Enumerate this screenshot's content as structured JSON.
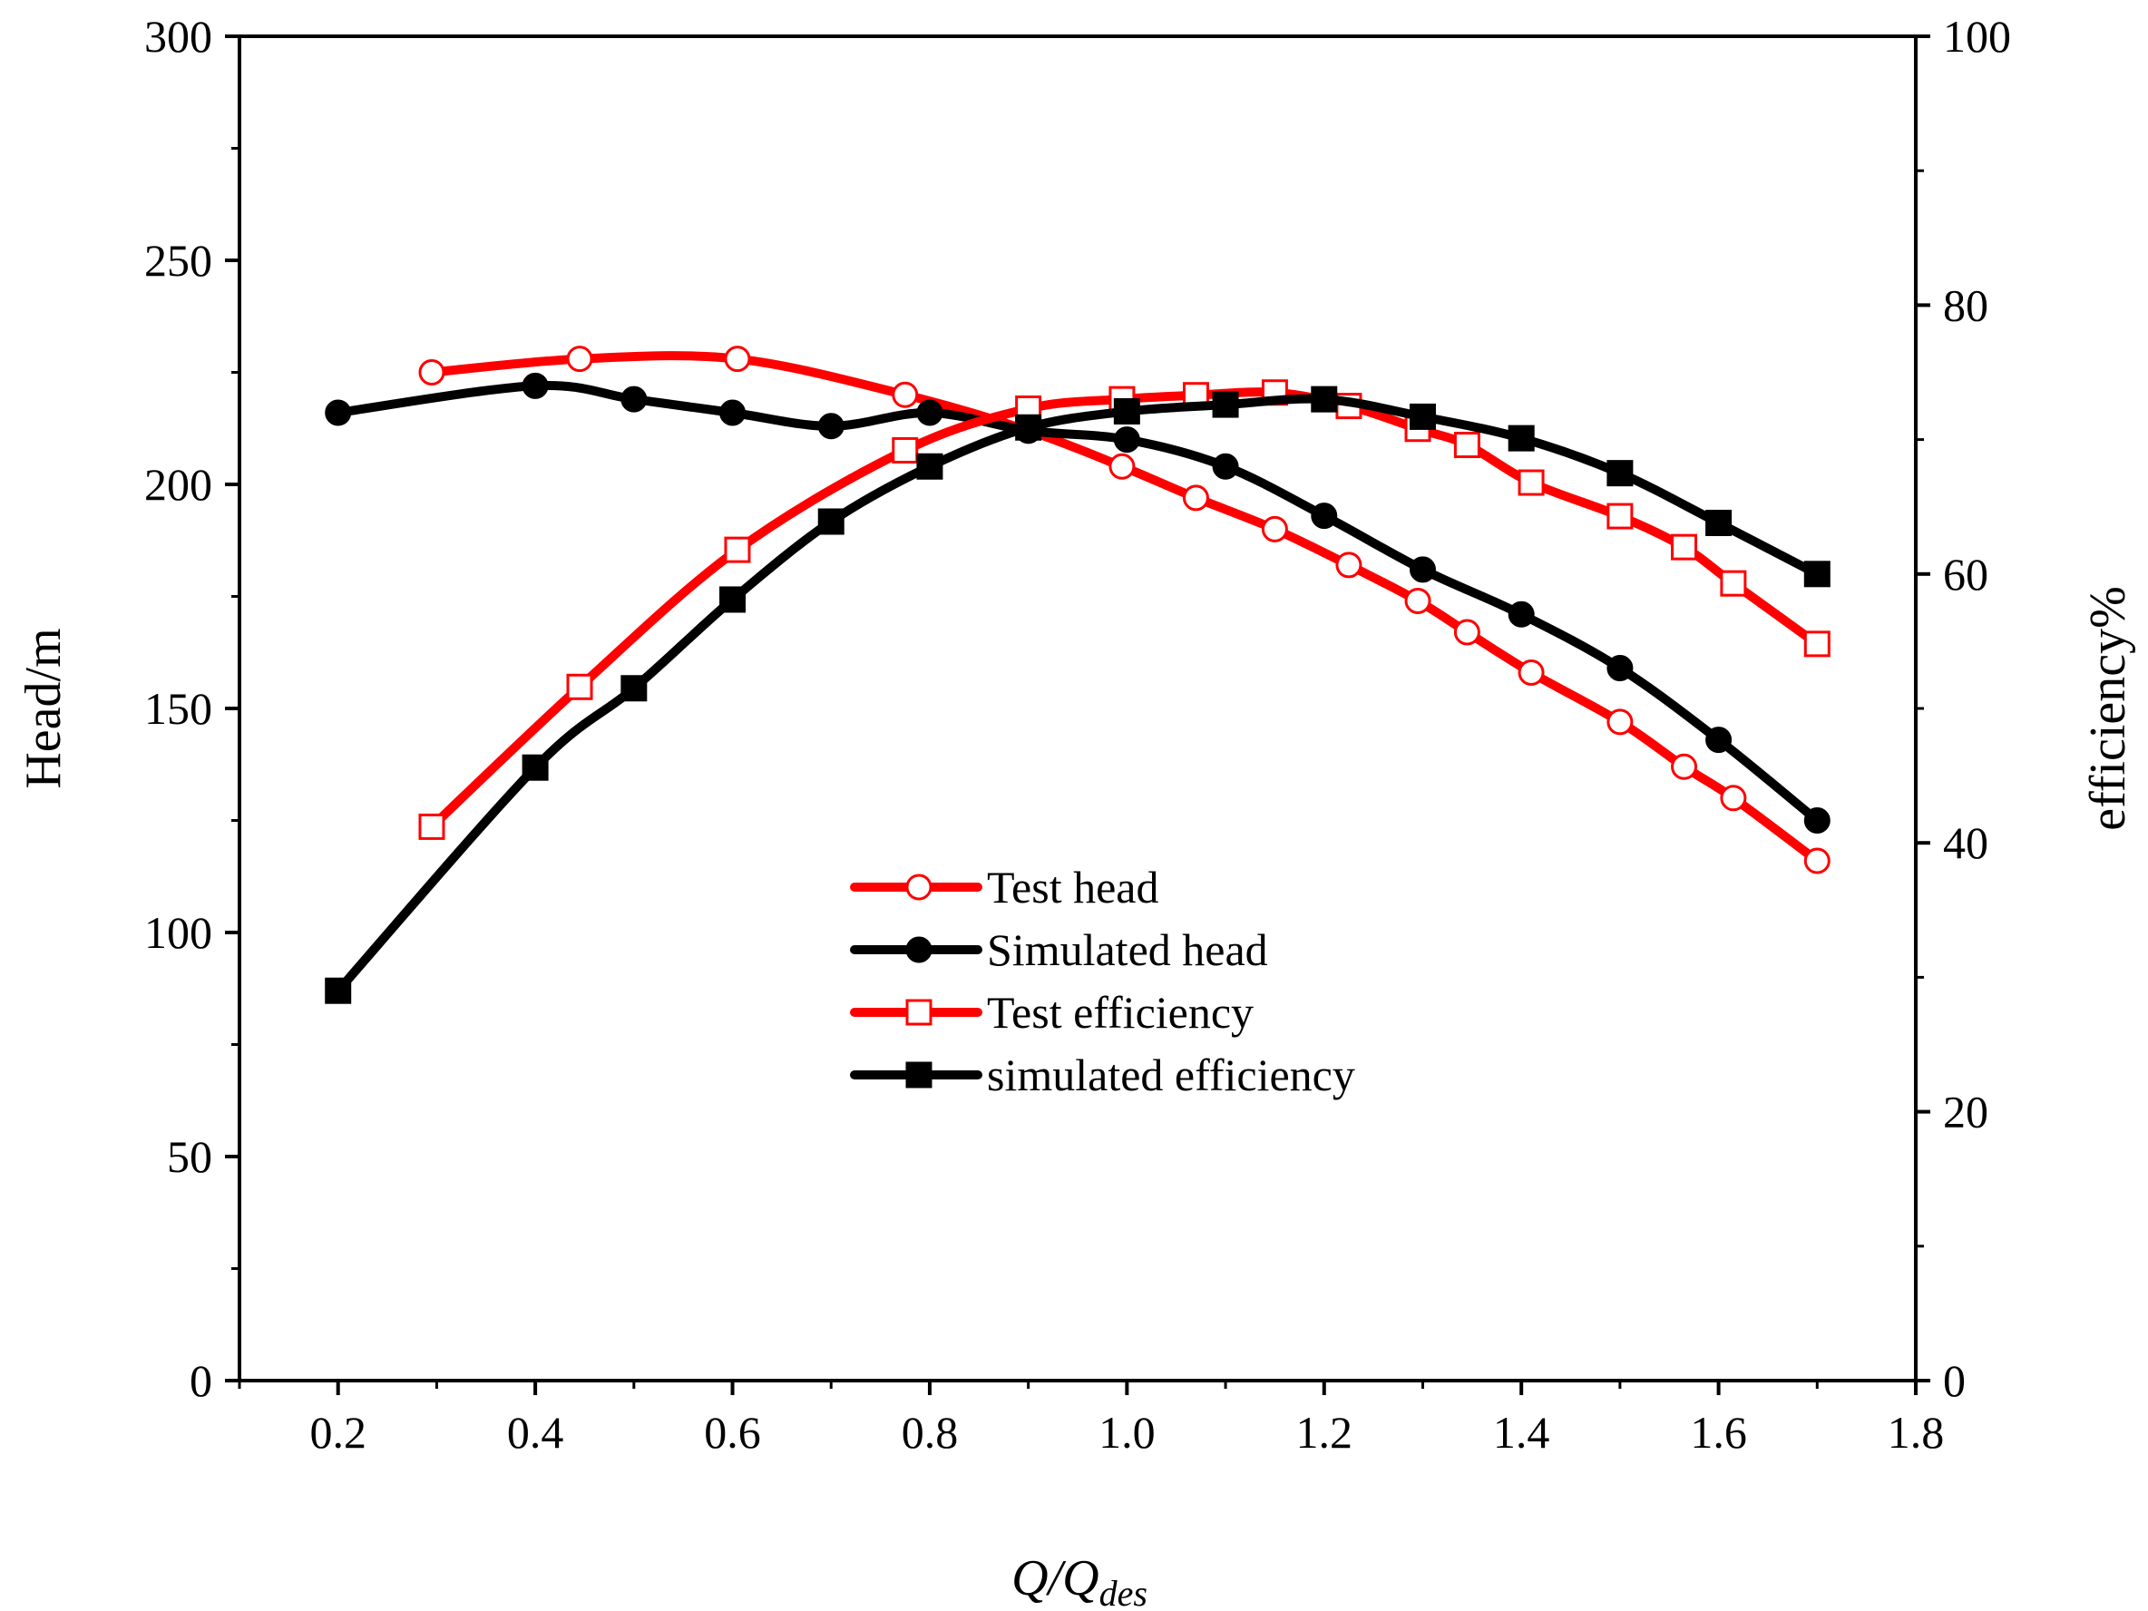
{
  "chart_data": {
    "type": "line",
    "xlabel_main": "Q/Q",
    "xlabel_sub": "des",
    "ylabel_left": "Head/m",
    "ylabel_right": "efficiency%",
    "xlim": [
      0.1,
      1.8
    ],
    "ylim_left": [
      0,
      300
    ],
    "ylim_right": [
      0,
      100
    ],
    "x_ticks": [
      0.2,
      0.4,
      0.6,
      0.8,
      1.0,
      1.2,
      1.4,
      1.6,
      1.8
    ],
    "x_tick_labels": [
      "0.2",
      "0.4",
      "0.6",
      "0.8",
      "1.0",
      "1.2",
      "1.4",
      "1.6",
      "1.8"
    ],
    "y_left_ticks": [
      0,
      50,
      100,
      150,
      200,
      250,
      300
    ],
    "y_left_tick_labels": [
      "0",
      "50",
      "100",
      "150",
      "200",
      "250",
      "300"
    ],
    "y_right_ticks": [
      0,
      20,
      40,
      60,
      80,
      100
    ],
    "y_right_tick_labels": [
      "0",
      "20",
      "40",
      "60",
      "80",
      "100"
    ],
    "legend_position": "center",
    "series": [
      {
        "name": "Test head",
        "axis": "left",
        "color": "#ff0000",
        "marker": "circle-open",
        "x": [
          0.295,
          0.445,
          0.605,
          0.775,
          0.9,
          0.995,
          1.07,
          1.15,
          1.225,
          1.295,
          1.345,
          1.41,
          1.5,
          1.565,
          1.615,
          1.7
        ],
        "y": [
          225,
          228,
          228,
          220,
          212,
          204,
          197,
          190,
          182,
          174,
          167,
          158,
          147,
          137,
          130,
          116
        ]
      },
      {
        "name": "Simulated head",
        "axis": "left",
        "color": "#000000",
        "marker": "circle-filled",
        "x": [
          0.2,
          0.4,
          0.5,
          0.6,
          0.7,
          0.8,
          0.9,
          1.0,
          1.1,
          1.2,
          1.3,
          1.4,
          1.5,
          1.6,
          1.7
        ],
        "y": [
          216,
          222,
          219,
          216,
          213,
          216,
          212,
          210,
          204,
          193,
          181,
          171,
          159,
          143,
          125
        ]
      },
      {
        "name": "Test efficiency",
        "axis": "right",
        "color": "#ff0000",
        "marker": "square-open",
        "x": [
          0.295,
          0.445,
          0.605,
          0.775,
          0.9,
          0.995,
          1.07,
          1.15,
          1.225,
          1.295,
          1.345,
          1.41,
          1.5,
          1.565,
          1.615,
          1.7
        ],
        "y": [
          41.2,
          51.6,
          61.8,
          69.2,
          72.3,
          73.0,
          73.3,
          73.5,
          72.5,
          70.8,
          69.6,
          66.8,
          64.3,
          62.0,
          59.3,
          54.8
        ]
      },
      {
        "name": "simulated efficiency",
        "axis": "right",
        "color": "#000000",
        "marker": "square-filled",
        "x": [
          0.2,
          0.4,
          0.5,
          0.6,
          0.7,
          0.8,
          0.9,
          1.0,
          1.1,
          1.2,
          1.3,
          1.4,
          1.5,
          1.6,
          1.7
        ],
        "y": [
          29.0,
          45.6,
          51.5,
          58.1,
          63.9,
          68.0,
          70.9,
          72.1,
          72.6,
          73.0,
          71.7,
          70.1,
          67.5,
          63.8,
          60.0
        ]
      }
    ]
  }
}
